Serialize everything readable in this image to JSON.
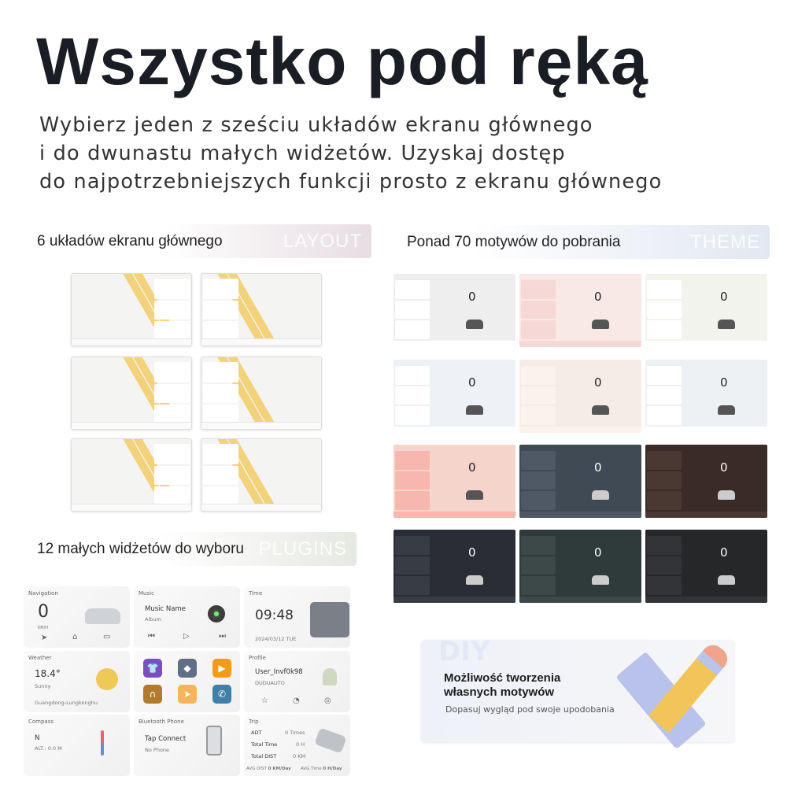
{
  "title": "Wszystko pod ręką",
  "subtitle": [
    "Wybierz jeden z sześciu układów ekranu głównego",
    "i do dwunastu małych widżetów. Uzyskaj dostęp",
    "do najpotrzebniejszych funkcji prosto z ekranu głównego"
  ],
  "layouts": {
    "heading": "6 układów ekranu głównego",
    "watermark": "LAYOUT",
    "count": 6
  },
  "themes": {
    "heading": "Ponad 70 motywów do pobrania",
    "watermark": "THEME",
    "items": [
      {
        "bg": "#eeeeee",
        "side": "#ffffff",
        "speed": "0",
        "text": "#222"
      },
      {
        "bg": "#f8e8e6",
        "side": "#f6d9d6",
        "speed": "0",
        "text": "#222"
      },
      {
        "bg": "#f3f3ee",
        "side": "#ffffff",
        "speed": "0",
        "text": "#222"
      },
      {
        "bg": "#eef2f6",
        "side": "#ffffff",
        "speed": "0",
        "text": "#222"
      },
      {
        "bg": "#f6ece6",
        "side": "#fbf2ee",
        "speed": "0",
        "text": "#222"
      },
      {
        "bg": "#eef1f4",
        "side": "#ffffff",
        "speed": "0",
        "text": "#222"
      },
      {
        "bg": "#f4d4cb",
        "side": "#f7b6ae",
        "speed": "0",
        "text": "#222"
      },
      {
        "bg": "#3f4a55",
        "side": "#4e5965",
        "speed": "0",
        "text": "#fff"
      },
      {
        "bg": "#3a2b26",
        "side": "#4a3933",
        "speed": "0",
        "text": "#fff"
      },
      {
        "bg": "#2a2d33",
        "side": "#383c43",
        "speed": "0",
        "text": "#fff"
      },
      {
        "bg": "#2f3a3b",
        "side": "#3d4849",
        "speed": "0",
        "text": "#fff"
      },
      {
        "bg": "#262729",
        "side": "#333437",
        "speed": "0",
        "text": "#fff"
      }
    ]
  },
  "plugins": {
    "heading": "12 małych widżetów do wyboru",
    "watermark": "PLUGINS"
  },
  "widgets": {
    "navigation": {
      "label": "Navigation",
      "speed": "0",
      "unit": "KM/H"
    },
    "music": {
      "label": "Music",
      "name": "Music Name",
      "album": "Album"
    },
    "time": {
      "label": "Time",
      "time": "09:48",
      "date": "2024/03/12 TUE"
    },
    "weather": {
      "label": "Weather",
      "temp": "18.4°",
      "condition": "Sunny",
      "location": "Guangdong-Lungkonghu"
    },
    "profile": {
      "label": "Profile",
      "user": "User_Invf0k98",
      "brand": "DUDUAUTO"
    },
    "compass": {
      "label": "Compass",
      "dir": "N",
      "alt": "ALT.: 0.0 M"
    },
    "bluetooth": {
      "label": "Bluetooth Phone",
      "action": "Tap Connect",
      "status": "No Phone"
    },
    "trip": {
      "label": "Trip",
      "rows": [
        {
          "k": "ADT",
          "v": "0 Times"
        },
        {
          "k": "Total Time",
          "v": "0 H"
        },
        {
          "k": "Total DIST",
          "v": "0 KM"
        }
      ],
      "avg_dist_label": "AVG DIST",
      "avg_dist": "0 KM/Day",
      "avg_time_label": "AVG Time",
      "avg_time": "0 H/Day"
    },
    "apps": [
      {
        "icon": "shirt-icon",
        "color": "#7b4fc2"
      },
      {
        "icon": "map-icon",
        "color": "#5f6f86"
      },
      {
        "icon": "video-icon",
        "color": "#f49a17"
      },
      {
        "icon": "headphones-icon",
        "color": "#b07a2f"
      },
      {
        "icon": "navigation-icon",
        "color": "#f7b45a"
      },
      {
        "icon": "phone-icon",
        "color": "#3f7fa8"
      }
    ]
  },
  "diy": {
    "watermark": "DIY",
    "title_line1": "Możliwość tworzenia",
    "title_line2": "własnych motywów",
    "subtitle": "Dopasuj wygląd pod swoje upodobania"
  }
}
